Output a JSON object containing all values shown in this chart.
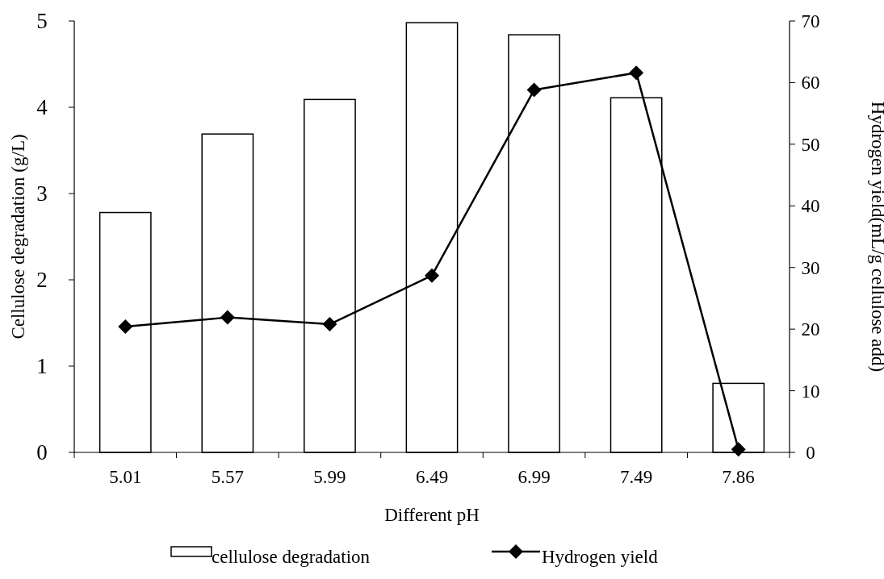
{
  "chart_data": {
    "type": "bar",
    "xlabel": "Different pH",
    "ylabel": "Cellulose degradation (g/L)",
    "y2label": "Hydrogen yield(mL/g cellulose add)",
    "categories": [
      "5.01",
      "5.57",
      "5.99",
      "6.49",
      "6.99",
      "7.49",
      "7.86"
    ],
    "series": [
      {
        "name": "cellulose degradation",
        "color": "#ffffff",
        "values": [
          2.78,
          3.69,
          4.09,
          4.98,
          4.84,
          4.11,
          0.8
        ]
      },
      {
        "name": "Hydrogen yield",
        "type": "line",
        "axis": "y2",
        "color": "#000000",
        "marker": "diamond",
        "values": [
          20.4,
          21.9,
          20.8,
          28.7,
          58.8,
          61.6,
          0.5
        ]
      }
    ],
    "ylim": [
      0,
      5
    ],
    "yticks": [
      0,
      1,
      2,
      3,
      4,
      5
    ],
    "y2lim": [
      0,
      70
    ],
    "y2ticks": [
      0,
      10,
      20,
      30,
      40,
      50,
      60,
      70
    ],
    "legend": "bottom",
    "grid": false
  }
}
